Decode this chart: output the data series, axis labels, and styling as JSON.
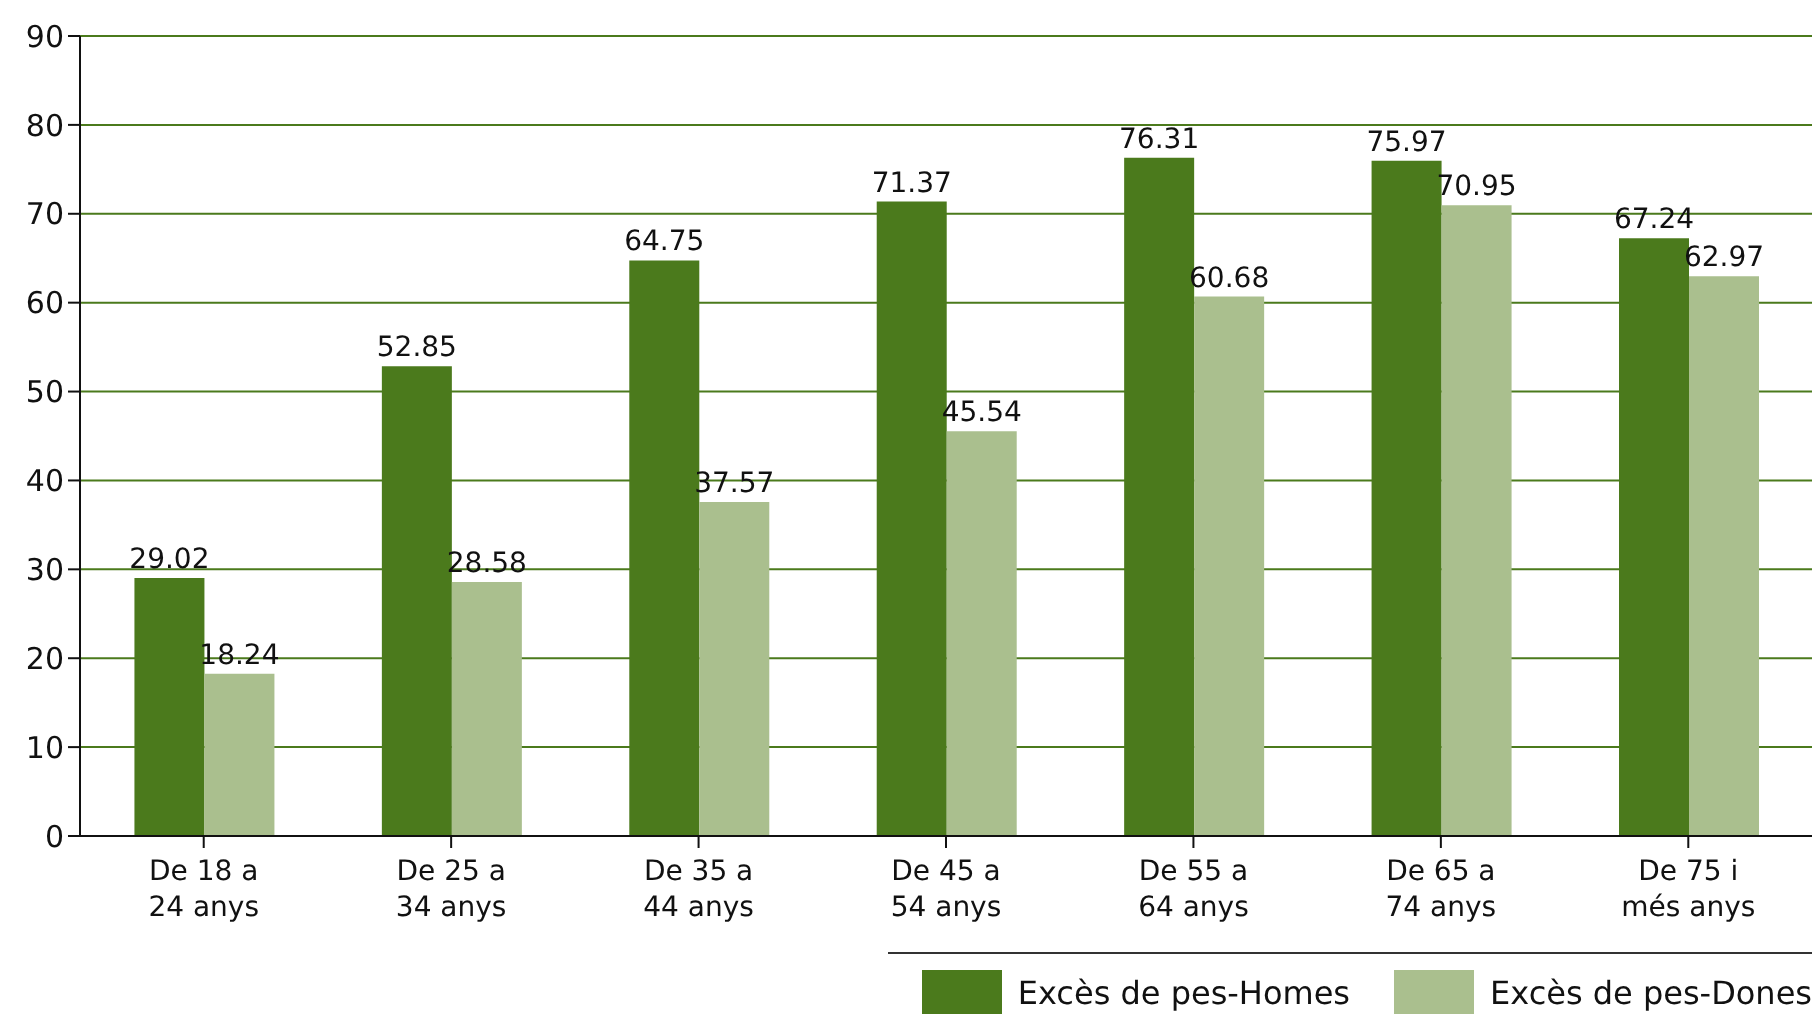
{
  "chart_data": {
    "type": "bar",
    "categories": [
      "De 18 a 24 anys",
      "De 25 a 34 anys",
      "De 35 a 44 anys",
      "De 45 a 54 anys",
      "De 55 a 64 anys",
      "De 65 a 74 anys",
      "De 75 i més anys"
    ],
    "series": [
      {
        "name": "Excès de pes-Homes",
        "color": "#4b7a1c",
        "values": [
          29.02,
          52.85,
          64.75,
          71.37,
          76.31,
          75.97,
          67.24
        ]
      },
      {
        "name": "Excès de pes-Dones",
        "color": "#aabf8e",
        "values": [
          18.24,
          28.58,
          37.57,
          45.54,
          60.68,
          70.95,
          62.97
        ]
      }
    ],
    "ylim": [
      0,
      90
    ],
    "yticks": [
      0,
      10,
      20,
      30,
      40,
      50,
      60,
      70,
      80,
      90
    ],
    "grid": "y",
    "legend": "bottom right",
    "data_labels": true
  }
}
